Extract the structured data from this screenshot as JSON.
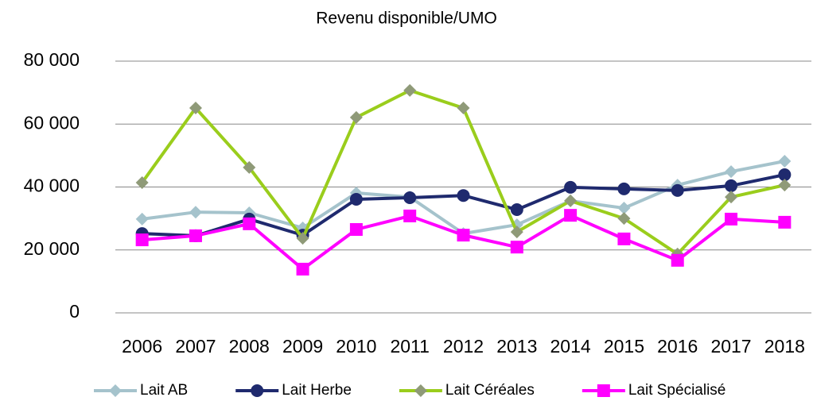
{
  "chart_data": {
    "type": "line",
    "title": "Revenu disponible/UMO",
    "categories": [
      "2006",
      "2007",
      "2008",
      "2009",
      "2010",
      "2011",
      "2012",
      "2013",
      "2014",
      "2015",
      "2016",
      "2017",
      "2018"
    ],
    "series": [
      {
        "name": "Lait AB",
        "color": "#a5c3cc",
        "marker": "diamond",
        "marker_color": "#a5c3cc",
        "values": [
          29800,
          32000,
          31800,
          27000,
          38100,
          36800,
          25200,
          28000,
          35600,
          33300,
          40600,
          44900,
          48200
        ]
      },
      {
        "name": "Lait Herbe",
        "color": "#1f2a6e",
        "marker": "circle",
        "marker_color": "#1f2a6e",
        "values": [
          25200,
          24500,
          29800,
          24700,
          36100,
          36600,
          37300,
          32800,
          39900,
          39400,
          38900,
          40400,
          43900
        ]
      },
      {
        "name": "Lait Céréales",
        "color": "#9acd1c",
        "marker": "diamond",
        "marker_color": "#8f9a78",
        "values": [
          41400,
          65100,
          46200,
          23700,
          62100,
          70700,
          65100,
          25700,
          35600,
          30000,
          18700,
          36800,
          40600
        ]
      },
      {
        "name": "Lait Spécialisé",
        "color": "#ff00ff",
        "marker": "square",
        "marker_color": "#ff00ff",
        "values": [
          23200,
          24500,
          28300,
          13900,
          26500,
          30800,
          24700,
          20900,
          31000,
          23500,
          16700,
          29800,
          28800
        ]
      }
    ],
    "ylim": [
      0,
      80000
    ],
    "yticks": [
      0,
      {
        "value": 20000,
        "label": "20 000"
      },
      {
        "value": 40000,
        "label": "40 000"
      },
      {
        "value": 60000,
        "label": "60 000"
      },
      {
        "value": 80000,
        "label": "80 000"
      }
    ],
    "grid": true,
    "legend": "bottom"
  }
}
